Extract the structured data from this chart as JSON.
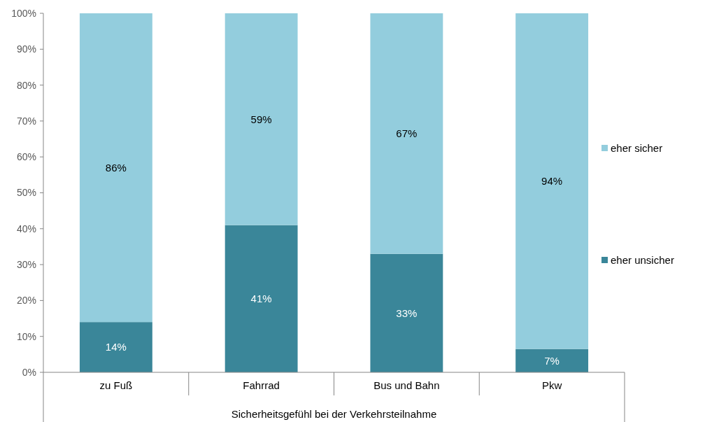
{
  "chart_data": {
    "type": "bar",
    "stacked": true,
    "xlabel": "Sicherheitsgefühl bei der Verkehrsteilnahme",
    "categories": [
      "zu Fuß",
      "Fahrrad",
      "Bus und Bahn",
      "Pkw"
    ],
    "series": [
      {
        "name": "eher unsicher",
        "color": "#3a8699",
        "values": [
          14,
          41,
          33,
          6.5
        ],
        "value_labels": [
          "14%",
          "41%",
          "33%",
          "7%"
        ]
      },
      {
        "name": "eher sicher",
        "color": "#93cddd",
        "values": [
          86,
          59,
          67,
          93.5
        ],
        "value_labels": [
          "86%",
          "59%",
          "67%",
          "94%"
        ]
      }
    ],
    "ylim": [
      0,
      100
    ],
    "yticks": [
      {
        "value": 0,
        "label": "0%"
      },
      {
        "value": 10,
        "label": "10%"
      },
      {
        "value": 20,
        "label": "20%"
      },
      {
        "value": 30,
        "label": "30%"
      },
      {
        "value": 40,
        "label": "40%"
      },
      {
        "value": 50,
        "label": "50%"
      },
      {
        "value": 60,
        "label": "60%"
      },
      {
        "value": 70,
        "label": "70%"
      },
      {
        "value": 80,
        "label": "80%"
      },
      {
        "value": 90,
        "label": "90%"
      },
      {
        "value": 100,
        "label": "100%"
      }
    ],
    "legend": "right",
    "grid": false
  }
}
